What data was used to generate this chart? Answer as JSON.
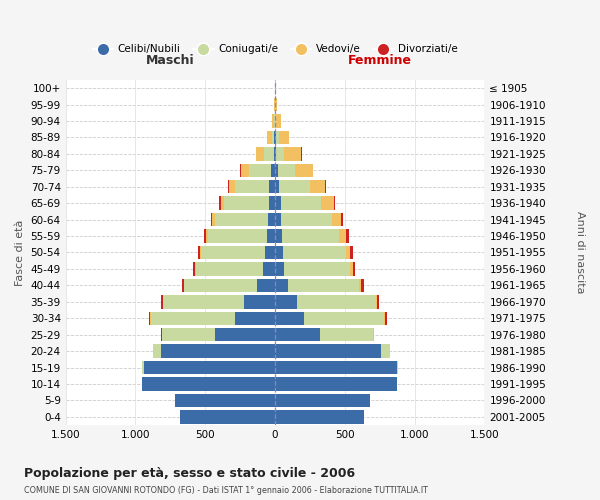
{
  "age_groups_bottom_to_top": [
    "0-4",
    "5-9",
    "10-14",
    "15-19",
    "20-24",
    "25-29",
    "30-34",
    "35-39",
    "40-44",
    "45-49",
    "50-54",
    "55-59",
    "60-64",
    "65-69",
    "70-74",
    "75-79",
    "80-84",
    "85-89",
    "90-94",
    "95-99",
    "100+"
  ],
  "birth_years_bottom_to_top": [
    "2001-2005",
    "1996-2000",
    "1991-1995",
    "1986-1990",
    "1981-1985",
    "1976-1980",
    "1971-1975",
    "1966-1970",
    "1961-1965",
    "1956-1960",
    "1951-1955",
    "1946-1950",
    "1941-1945",
    "1936-1940",
    "1931-1935",
    "1926-1930",
    "1921-1925",
    "1916-1920",
    "1911-1915",
    "1906-1910",
    "≤ 1905"
  ],
  "colors": {
    "celibi": "#3c6ca8",
    "coniugati": "#c8daa0",
    "vedovi": "#f2c060",
    "divorziati": "#cc2222"
  },
  "males": {
    "celibi": [
      680,
      720,
      950,
      940,
      820,
      430,
      290,
      220,
      130,
      90,
      70,
      60,
      50,
      45,
      40,
      30,
      10,
      5,
      3,
      2,
      1
    ],
    "coniugati": [
      0,
      0,
      5,
      10,
      55,
      380,
      600,
      580,
      520,
      480,
      460,
      420,
      380,
      320,
      250,
      160,
      70,
      20,
      8,
      2,
      0
    ],
    "vedovi": [
      0,
      0,
      0,
      0,
      0,
      0,
      5,
      5,
      5,
      5,
      10,
      15,
      20,
      25,
      40,
      55,
      55,
      30,
      10,
      2,
      0
    ],
    "divorziati": [
      0,
      0,
      0,
      0,
      0,
      5,
      10,
      10,
      15,
      15,
      15,
      15,
      10,
      10,
      8,
      5,
      0,
      0,
      0,
      0,
      0
    ]
  },
  "females": {
    "nubili": [
      640,
      680,
      870,
      870,
      760,
      320,
      210,
      160,
      90,
      65,
      55,
      50,
      45,
      40,
      30,
      20,
      10,
      5,
      2,
      1,
      1
    ],
    "coniugate": [
      0,
      0,
      5,
      10,
      60,
      380,
      570,
      560,
      510,
      470,
      450,
      410,
      360,
      290,
      220,
      120,
      55,
      20,
      8,
      2,
      0
    ],
    "vedove": [
      0,
      0,
      0,
      0,
      0,
      5,
      10,
      10,
      15,
      20,
      35,
      50,
      70,
      90,
      110,
      130,
      120,
      75,
      30,
      10,
      2
    ],
    "divorziate": [
      0,
      0,
      0,
      0,
      0,
      5,
      15,
      15,
      20,
      20,
      20,
      20,
      15,
      10,
      8,
      5,
      5,
      0,
      0,
      0,
      0
    ]
  },
  "xlim": 1500,
  "xticks": [
    -1500,
    -1000,
    -500,
    0,
    500,
    1000,
    1500
  ],
  "xticklabels": [
    "1.500",
    "1.000",
    "500",
    "0",
    "500",
    "1.000",
    "1.500"
  ],
  "title": "Popolazione per età, sesso e stato civile - 2006",
  "subtitle": "COMUNE DI SAN GIOVANNI ROTONDO (FG) - Dati ISTAT 1° gennaio 2006 - Elaborazione TUTTITALIA.IT",
  "ylabel_left": "Fasce di età",
  "ylabel_right": "Anni di nascita",
  "label_maschi": "Maschi",
  "label_femmine": "Femmine",
  "legend_labels": [
    "Celibi/Nubili",
    "Coniugati/e",
    "Vedovi/e",
    "Divorziati/e"
  ],
  "background_color": "#f5f5f5",
  "plot_background": "#ffffff"
}
